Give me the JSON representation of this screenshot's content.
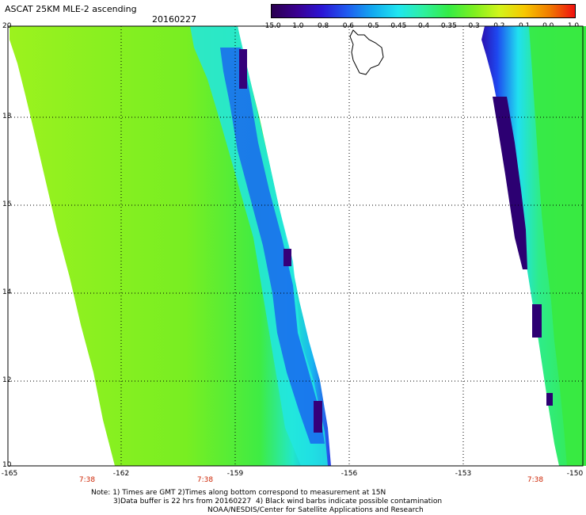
{
  "header": {
    "title": "ASCAT 25KM MLE-2 ascending",
    "date": "20160227"
  },
  "colorbar": {
    "labels": [
      "-15.0",
      "-1.0",
      "-0.8",
      "-0.6",
      "-0.5",
      "-0.45",
      "-0.4",
      "-0.35",
      "-0.3",
      "-0.2",
      "-0.1",
      "0.0",
      "1.0"
    ],
    "colors": [
      "#2a0050",
      "#3a0090",
      "#2b16d6",
      "#1f5cf0",
      "#12a9f0",
      "#20e6f0",
      "#2ef0a0",
      "#34ec46",
      "#7df020",
      "#d2f51a",
      "#f7c800",
      "#f07a00",
      "#f01010"
    ]
  },
  "map": {
    "lat_labels": [
      "20",
      "18",
      "16",
      "14",
      "12",
      "10"
    ],
    "lon_labels": [
      "-165",
      "-162",
      "-159",
      "-156",
      "-153",
      "-150"
    ],
    "time_labels": [
      "7:38",
      "7:38",
      "7:38"
    ],
    "land_outline": "Island of Hawaii outline",
    "colors": {
      "swath_base": "#8df020",
      "swath_mid": "#3cec48",
      "swath_edge": "#20e8e0",
      "swath_blue": "#1a4af0",
      "swath_dark": "#2c0070"
    }
  },
  "notes": {
    "line1": "Note: 1) Times are GMT 2)Times along bottom correspond to measurement at 15N",
    "line2": "3)Data buffer is 22 hrs from 20160227  4) Black wind barbs indicate possible contamination",
    "line3": "NOAA/NESDIS/Center for Satellite Applications and Research"
  }
}
